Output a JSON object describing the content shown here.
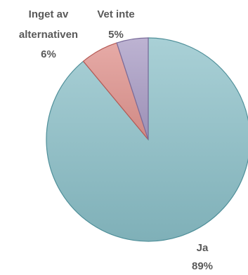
{
  "chart_data": {
    "type": "pie",
    "title": "",
    "slices": [
      {
        "label": "Ja",
        "value": 89,
        "value_label": "89%",
        "color": "#8fbfc6"
      },
      {
        "label": "Inget av alternativen",
        "label_lines": [
          "Inget av",
          "alternativen"
        ],
        "value": 6,
        "value_label": "6%",
        "color": "#d99590"
      },
      {
        "label": "Vet inte",
        "value": 5,
        "value_label": "5%",
        "color": "#a99ec0"
      }
    ],
    "legend": "none",
    "start_angle_deg": 0,
    "direction": "clockwise"
  }
}
